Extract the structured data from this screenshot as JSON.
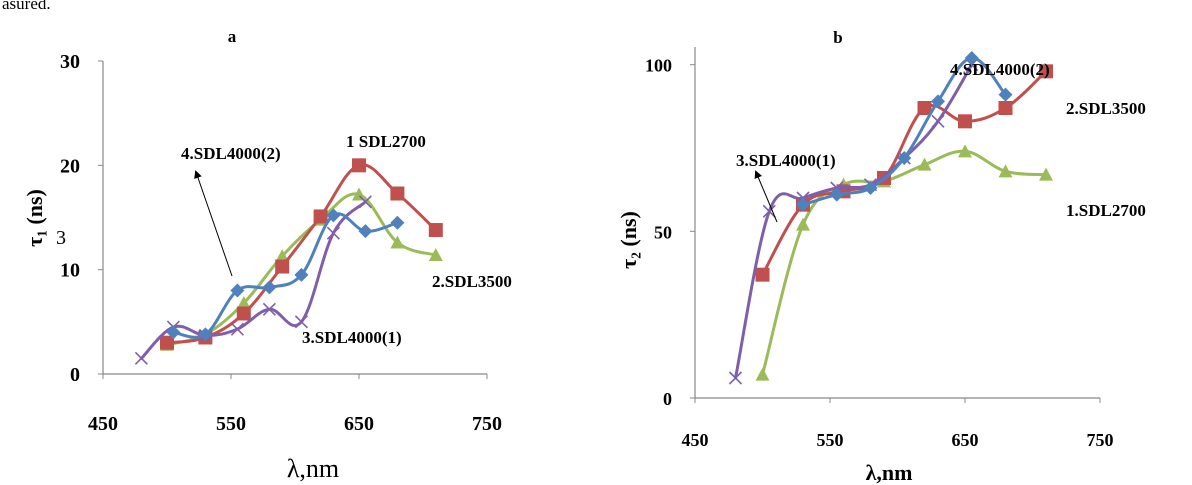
{
  "caption_fragment": "asured.",
  "colors": {
    "purple": "#7F5FAA",
    "red": "#C0504D",
    "blue": "#4F81BD",
    "green": "#9BBB59"
  },
  "chart_data": [
    {
      "type": "line",
      "title": "a",
      "xlabel": "λ,nm",
      "ylabel": "τ₁ (ns)",
      "ylabel_stray": "3",
      "xlim": [
        450,
        750
      ],
      "ylim": [
        0,
        30
      ],
      "xticks": [
        "450",
        "550",
        "650",
        "750"
      ],
      "yticks": [
        "0",
        "10",
        "20",
        "30"
      ],
      "series": [
        {
          "name": "1 SDL2700",
          "marker": "triangle",
          "color": "#9BBB59",
          "x": [
            500,
            530,
            560,
            590,
            620,
            650,
            680,
            710
          ],
          "y": [
            2.8,
            3.8,
            6.8,
            11.3,
            14.8,
            17.2,
            12.6,
            11.4
          ]
        },
        {
          "name": "2.SDL3500",
          "marker": "square",
          "color": "#C0504D",
          "x": [
            500,
            530,
            560,
            590,
            620,
            650,
            680,
            710
          ],
          "y": [
            3.0,
            3.5,
            5.8,
            10.3,
            15.1,
            20.0,
            17.3,
            13.8
          ]
        },
        {
          "name": "3.SDL4000(1)",
          "marker": "x",
          "color": "#7F5FAA",
          "x": [
            480,
            505,
            530,
            555,
            580,
            605,
            630,
            655
          ],
          "y": [
            1.5,
            4.5,
            3.7,
            4.3,
            6.2,
            5.0,
            13.5,
            16.5
          ]
        },
        {
          "name": "4.SDL4000(2)",
          "marker": "diamond",
          "color": "#4F81BD",
          "x": [
            505,
            530,
            555,
            580,
            605,
            630,
            655,
            680
          ],
          "y": [
            4.0,
            3.8,
            8.0,
            8.3,
            9.5,
            15.2,
            13.7,
            14.5
          ]
        }
      ],
      "annotations": [
        {
          "text": "1 SDL2700"
        },
        {
          "text": "2.SDL3500"
        },
        {
          "text": "3.SDL4000(1)"
        },
        {
          "text": "4.SDL4000(2)"
        }
      ]
    },
    {
      "type": "line",
      "title": "b",
      "xlabel": "λ,nm",
      "ylabel": "τ₂ (ns)",
      "xlim": [
        450,
        750
      ],
      "ylim": [
        0,
        120
      ],
      "xticks": [
        "450",
        "550",
        "650",
        "750"
      ],
      "yticks": [
        "0",
        "50",
        "100"
      ],
      "series": [
        {
          "name": "1.SDL2700",
          "marker": "triangle",
          "color": "#9BBB59",
          "x": [
            500,
            530,
            560,
            590,
            620,
            650,
            680,
            710
          ],
          "y": [
            7,
            52,
            64,
            65,
            70,
            74,
            68,
            67
          ]
        },
        {
          "name": "2.SDL3500",
          "marker": "square",
          "color": "#C0504D",
          "x": [
            500,
            530,
            560,
            590,
            620,
            650,
            680,
            710
          ],
          "y": [
            37,
            58,
            62,
            66,
            87,
            83,
            87,
            98
          ]
        },
        {
          "name": "3.SDL4000(1)",
          "marker": "x",
          "color": "#7F5FAA",
          "x": [
            480,
            505,
            530,
            555,
            580,
            605,
            630,
            655
          ],
          "y": [
            6,
            56,
            60,
            63,
            64,
            72,
            83,
            100
          ]
        },
        {
          "name": "4.SDL4000(2)",
          "marker": "diamond",
          "color": "#4F81BD",
          "x": [
            530,
            555,
            580,
            605,
            630,
            655,
            680
          ],
          "y": [
            58,
            61,
            63,
            72,
            89,
            102,
            91
          ]
        }
      ],
      "annotations": [
        {
          "text": "1.SDL2700"
        },
        {
          "text": "2.SDL3500"
        },
        {
          "text": "3.SDL4000(1)"
        },
        {
          "text": "4.SDL4000(2)"
        }
      ]
    }
  ]
}
